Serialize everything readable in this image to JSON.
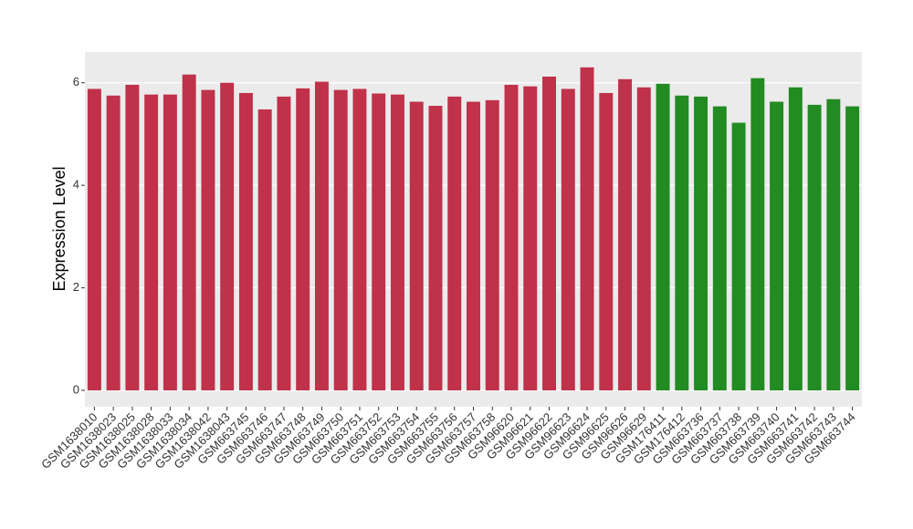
{
  "chart_data": {
    "type": "bar",
    "ylabel": "Expression Level",
    "categories": [
      "GSM1638010",
      "GSM1638023",
      "GSM1638025",
      "GSM1638028",
      "GSM1638033",
      "GSM1638034",
      "GSM1638042",
      "GSM1638043",
      "GSM663745",
      "GSM663746",
      "GSM663747",
      "GSM663748",
      "GSM663749",
      "GSM663750",
      "GSM663751",
      "GSM663752",
      "GSM663753",
      "GSM663754",
      "GSM663755",
      "GSM663756",
      "GSM663757",
      "GSM663758",
      "GSM96620",
      "GSM96621",
      "GSM96622",
      "GSM96623",
      "GSM96624",
      "GSM96625",
      "GSM96626",
      "GSM96629",
      "GSM176411",
      "GSM176412",
      "GSM663736",
      "GSM663737",
      "GSM663738",
      "GSM663739",
      "GSM663740",
      "GSM663741",
      "GSM663742",
      "GSM663743",
      "GSM663744"
    ],
    "values": [
      5.88,
      5.75,
      5.96,
      5.77,
      5.77,
      6.16,
      5.86,
      6.0,
      5.8,
      5.48,
      5.73,
      5.89,
      6.02,
      5.86,
      5.88,
      5.79,
      5.77,
      5.63,
      5.55,
      5.73,
      5.63,
      5.66,
      5.96,
      5.93,
      6.12,
      5.88,
      6.3,
      5.8,
      6.07,
      5.91,
      5.98,
      5.75,
      5.73,
      5.54,
      5.22,
      6.09,
      5.63,
      5.91,
      5.57,
      5.68,
      5.54
    ],
    "colors": [
      "#c0314a",
      "#c0314a",
      "#c0314a",
      "#c0314a",
      "#c0314a",
      "#c0314a",
      "#c0314a",
      "#c0314a",
      "#c0314a",
      "#c0314a",
      "#c0314a",
      "#c0314a",
      "#c0314a",
      "#c0314a",
      "#c0314a",
      "#c0314a",
      "#c0314a",
      "#c0314a",
      "#c0314a",
      "#c0314a",
      "#c0314a",
      "#c0314a",
      "#c0314a",
      "#c0314a",
      "#c0314a",
      "#c0314a",
      "#c0314a",
      "#c0314a",
      "#c0314a",
      "#c0314a",
      "#228b22",
      "#228b22",
      "#228b22",
      "#228b22",
      "#228b22",
      "#228b22",
      "#228b22",
      "#228b22",
      "#228b22",
      "#228b22",
      "#228b22"
    ],
    "ylim": [
      -0.32,
      6.6
    ],
    "yticks": [
      0,
      2,
      4,
      6
    ],
    "grid": true
  }
}
